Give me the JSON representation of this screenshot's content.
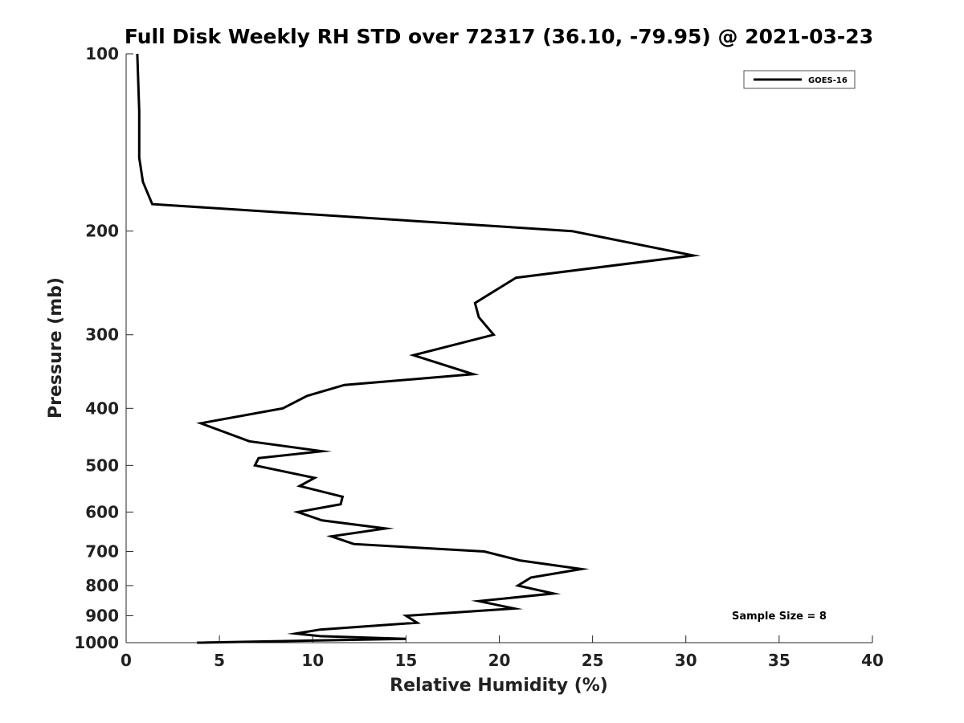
{
  "chart_data": {
    "type": "line",
    "title": "Full Disk Weekly RH STD over 72317 (36.10, -79.95) @ 2021-03-23",
    "xlabel": "Relative Humidity (%)",
    "ylabel": "Pressure (mb)",
    "xlim": [
      0,
      40
    ],
    "ylim": [
      100,
      1000
    ],
    "y_scale": "log",
    "y_reversed": true,
    "x_ticks": [
      0,
      5,
      10,
      15,
      20,
      25,
      30,
      35,
      40
    ],
    "x_tick_labels": [
      "0",
      "5",
      "10",
      "15",
      "20",
      "25",
      "30",
      "35",
      "40"
    ],
    "y_ticks": [
      100,
      200,
      300,
      400,
      500,
      600,
      700,
      800,
      900,
      1000
    ],
    "y_tick_labels": [
      "100",
      "200",
      "300",
      "400",
      "500",
      "600",
      "700",
      "800",
      "900",
      "1000"
    ],
    "grid": false,
    "legend_position": "top-right",
    "series": [
      {
        "name": "GOES-16",
        "color": "#000000",
        "points": [
          [
            0.6,
            100
          ],
          [
            0.7,
            125
          ],
          [
            0.7,
            150
          ],
          [
            0.9,
            165
          ],
          [
            1.4,
            180
          ],
          [
            23.9,
            200
          ],
          [
            30.4,
            220
          ],
          [
            20.9,
            240
          ],
          [
            18.7,
            265
          ],
          [
            18.9,
            280
          ],
          [
            19.7,
            300
          ],
          [
            15.4,
            325
          ],
          [
            18.6,
            350
          ],
          [
            11.7,
            365
          ],
          [
            9.7,
            381
          ],
          [
            8.4,
            400
          ],
          [
            4.0,
            424
          ],
          [
            6.6,
            455
          ],
          [
            10.5,
            473
          ],
          [
            7.1,
            486
          ],
          [
            6.9,
            500
          ],
          [
            10.1,
            525
          ],
          [
            9.3,
            542
          ],
          [
            11.6,
            565
          ],
          [
            11.5,
            582
          ],
          [
            9.2,
            600
          ],
          [
            10.5,
            620
          ],
          [
            13.9,
            640
          ],
          [
            11.0,
            660
          ],
          [
            12.2,
            680
          ],
          [
            19.2,
            700
          ],
          [
            21.1,
            725
          ],
          [
            24.4,
            750
          ],
          [
            21.7,
            775
          ],
          [
            21.0,
            800
          ],
          [
            22.9,
            825
          ],
          [
            18.9,
            850
          ],
          [
            20.8,
            875
          ],
          [
            15.0,
            900
          ],
          [
            15.6,
            925
          ],
          [
            10.4,
            950
          ],
          [
            9.1,
            965
          ],
          [
            10.4,
            975
          ],
          [
            15.0,
            985
          ],
          [
            3.8,
            1000
          ]
        ]
      }
    ],
    "annotations": [
      "Sample Size = 8"
    ]
  }
}
